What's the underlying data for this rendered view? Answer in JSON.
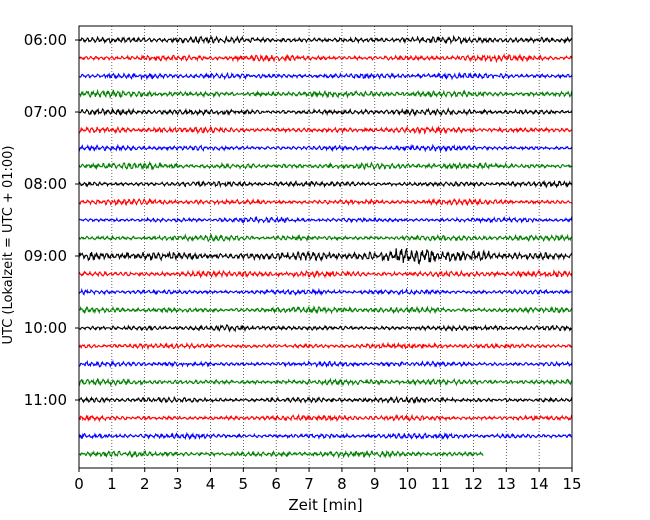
{
  "chart_data": {
    "type": "line",
    "title": "",
    "xlabel": "Zeit  [min]",
    "ylabel": "UTC (Lokalzeit = UTC + 01:00)",
    "xlim": [
      0,
      15
    ],
    "xticks": [
      "0",
      "1",
      "2",
      "3",
      "4",
      "5",
      "6",
      "7",
      "8",
      "9",
      "10",
      "11",
      "12",
      "13",
      "14",
      "15"
    ],
    "grid": "vertical dotted",
    "trace_interval_minutes": 15,
    "start_time": "06:00",
    "yticks": [
      "06:00",
      "07:00",
      "08:00",
      "09:00",
      "10:00",
      "11:00"
    ],
    "color_cycle": [
      "#000000",
      "#ff0000",
      "#0000ff",
      "#008000"
    ],
    "traces": [
      {
        "start": "06:00",
        "duration_min": 15,
        "amplitude": 0.3
      },
      {
        "start": "06:15",
        "duration_min": 15,
        "amplitude": 0.28
      },
      {
        "start": "06:30",
        "duration_min": 15,
        "amplitude": 0.26
      },
      {
        "start": "06:45",
        "duration_min": 15,
        "amplitude": 0.3
      },
      {
        "start": "07:00",
        "duration_min": 15,
        "amplitude": 0.28
      },
      {
        "start": "07:15",
        "duration_min": 15,
        "amplitude": 0.28
      },
      {
        "start": "07:30",
        "duration_min": 15,
        "amplitude": 0.24
      },
      {
        "start": "07:45",
        "duration_min": 15,
        "amplitude": 0.3
      },
      {
        "start": "08:00",
        "duration_min": 15,
        "amplitude": 0.26
      },
      {
        "start": "08:15",
        "duration_min": 15,
        "amplitude": 0.26
      },
      {
        "start": "08:30",
        "duration_min": 15,
        "amplitude": 0.24
      },
      {
        "start": "08:45",
        "duration_min": 15,
        "amplitude": 0.26
      },
      {
        "start": "09:00",
        "duration_min": 15,
        "amplitude": 0.45
      },
      {
        "start": "09:15",
        "duration_min": 15,
        "amplitude": 0.3
      },
      {
        "start": "09:30",
        "duration_min": 15,
        "amplitude": 0.24
      },
      {
        "start": "09:45",
        "duration_min": 15,
        "amplitude": 0.28
      },
      {
        "start": "10:00",
        "duration_min": 15,
        "amplitude": 0.26
      },
      {
        "start": "10:15",
        "duration_min": 15,
        "amplitude": 0.24
      },
      {
        "start": "10:30",
        "duration_min": 15,
        "amplitude": 0.24
      },
      {
        "start": "10:45",
        "duration_min": 15,
        "amplitude": 0.28
      },
      {
        "start": "11:00",
        "duration_min": 15,
        "amplitude": 0.26
      },
      {
        "start": "11:15",
        "duration_min": 15,
        "amplitude": 0.26
      },
      {
        "start": "11:30",
        "duration_min": 15,
        "amplitude": 0.26
      },
      {
        "start": "11:45",
        "duration_min": 12.3,
        "amplitude": 0.28
      }
    ]
  }
}
